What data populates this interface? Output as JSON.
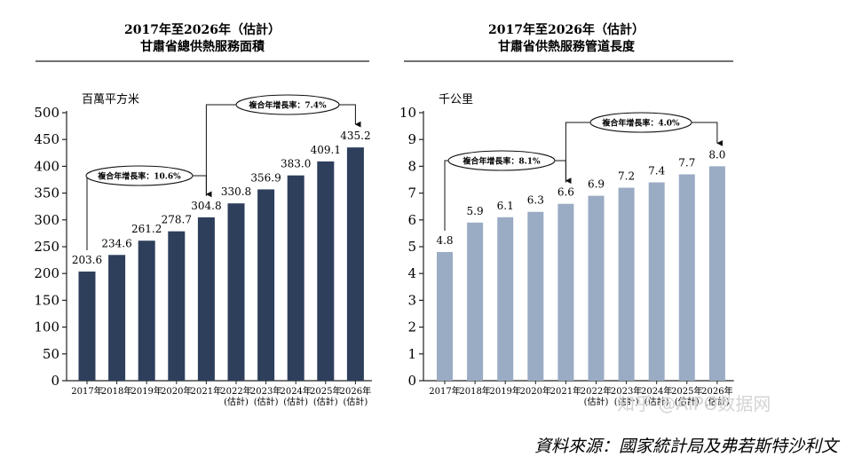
{
  "source_note": "資料來源：國家統計局及弗若斯特沙利文",
  "watermark": "知乎 @AiPO数据网",
  "chart_data": [
    {
      "type": "bar",
      "title": "2017年至2026年（估計）",
      "subtitle": "甘肅省總供熱服務面積",
      "ylabel": "百萬平方米",
      "ylim": [
        0,
        500
      ],
      "yticks": [
        "0",
        "50",
        "100",
        "150",
        "200",
        "250",
        "300",
        "350",
        "400",
        "450",
        "500"
      ],
      "color": "#2e3f5c",
      "categories": [
        {
          "line1": "2017年",
          "line2": ""
        },
        {
          "line1": "2018年",
          "line2": ""
        },
        {
          "line1": "2019年",
          "line2": ""
        },
        {
          "line1": "2020年",
          "line2": ""
        },
        {
          "line1": "2021年",
          "line2": ""
        },
        {
          "line1": "2022年",
          "line2": "(估計)"
        },
        {
          "line1": "2023年",
          "line2": "(估計)"
        },
        {
          "line1": "2024年",
          "line2": "(估計)"
        },
        {
          "line1": "2025年",
          "line2": "(估計)"
        },
        {
          "line1": "2026年",
          "line2": "(估計)"
        }
      ],
      "values": [
        203.6,
        234.6,
        261.2,
        278.7,
        304.8,
        330.8,
        356.9,
        383.0,
        409.1,
        435.2
      ],
      "value_labels": [
        "203.6",
        "234.6",
        "261.2",
        "278.7",
        "304.8",
        "330.8",
        "356.9",
        "383.0",
        "409.1",
        "435.2"
      ],
      "annotations": [
        {
          "label": "複合年增長率：10.6%",
          "from_index": 0,
          "to_index": 4
        },
        {
          "label": "複合年增長率：7.4%",
          "from_index": 4,
          "to_index": 9
        }
      ]
    },
    {
      "type": "bar",
      "title": "2017年至2026年（估計）",
      "subtitle": "甘肅省供熱服務管道長度",
      "ylabel": "千公里",
      "ylim": [
        0,
        10
      ],
      "yticks": [
        "0",
        "1",
        "2",
        "3",
        "4",
        "5",
        "6",
        "7",
        "8",
        "9",
        "10"
      ],
      "color": "#9aabc4",
      "categories": [
        {
          "line1": "2017年",
          "line2": ""
        },
        {
          "line1": "2018年",
          "line2": ""
        },
        {
          "line1": "2019年",
          "line2": ""
        },
        {
          "line1": "2020年",
          "line2": ""
        },
        {
          "line1": "2021年",
          "line2": ""
        },
        {
          "line1": "2022年",
          "line2": "(估計)"
        },
        {
          "line1": "2023年",
          "line2": "(估計)"
        },
        {
          "line1": "2024年",
          "line2": "(估計)"
        },
        {
          "line1": "2025年",
          "line2": "(估計)"
        },
        {
          "line1": "2026年",
          "line2": "(估計)"
        }
      ],
      "values": [
        4.8,
        5.9,
        6.1,
        6.3,
        6.6,
        6.9,
        7.2,
        7.4,
        7.7,
        8.0
      ],
      "value_labels": [
        "4.8",
        "5.9",
        "6.1",
        "6.3",
        "6.6",
        "6.9",
        "7.2",
        "7.4",
        "7.7",
        "8.0"
      ],
      "annotations": [
        {
          "label": "複合年增長率：8.1%",
          "from_index": 0,
          "to_index": 4
        },
        {
          "label": "複合年增長率：4.0%",
          "from_index": 4,
          "to_index": 9
        }
      ]
    }
  ]
}
